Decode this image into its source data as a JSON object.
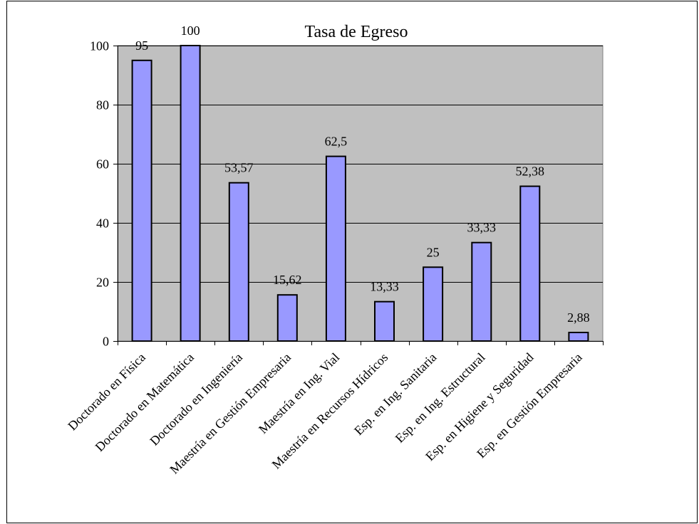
{
  "chart_data": {
    "type": "bar",
    "title": "Tasa de Egreso",
    "categories": [
      "Doctorado en Física",
      "Doctorado en Matemática",
      "Doctorado en Ingeniería",
      "Maestría en Gestión Empresaria",
      "Maestría en Ing. Vial",
      "Maestría en Recursos Hídricos",
      "Esp. en Ing. Sanitaria",
      "Esp. en Ing. Estructural",
      "Esp. en Higiene y Seguridad",
      "Esp. en Gestión Empresaria"
    ],
    "values": [
      95,
      100,
      53.57,
      15.62,
      62.5,
      13.33,
      25,
      33.33,
      52.38,
      2.88
    ],
    "data_labels": [
      "95",
      "100",
      "53,57",
      "15,62",
      "62,5",
      "13,33",
      "25",
      "33,33",
      "52,38",
      "2,88"
    ],
    "yticks": [
      0,
      20,
      40,
      60,
      80,
      100
    ],
    "ylim": [
      0,
      100
    ],
    "xlabel": "",
    "ylabel": "",
    "grid": true,
    "legend": "none",
    "colors": {
      "bar": "#9999ff",
      "plot_background": "#c0c0c0",
      "gridline": "#000000"
    }
  }
}
